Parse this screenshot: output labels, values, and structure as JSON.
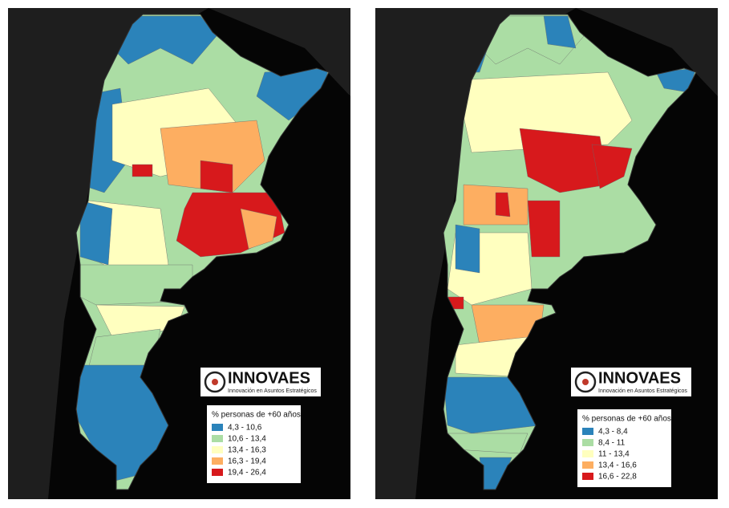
{
  "maps": [
    {
      "logo": {
        "name": "INNOVAES",
        "tagline": "Innovación en Asuntos Estratégicos"
      },
      "legend": {
        "title": "% personas de +60 años",
        "items": [
          {
            "label": "4,3 - 10,6",
            "color": "#2b83ba"
          },
          {
            "label": "10,6 - 13,4",
            "color": "#abdda4"
          },
          {
            "label": "13,4 - 16,3",
            "color": "#ffffbf"
          },
          {
            "label": "16,3 - 19,4",
            "color": "#fdae61"
          },
          {
            "label": "19,4 - 26,4",
            "color": "#d7191c"
          }
        ]
      }
    },
    {
      "logo": {
        "name": "INNOVAES",
        "tagline": "Innovación en Asuntos Estratégicos"
      },
      "legend": {
        "title": "% personas de +60 años",
        "items": [
          {
            "label": "4,3 - 8,4",
            "color": "#2b83ba"
          },
          {
            "label": "8,4 - 11",
            "color": "#abdda4"
          },
          {
            "label": "11 - 13,4",
            "color": "#ffffbf"
          },
          {
            "label": "13,4 - 16,6",
            "color": "#fdae61"
          },
          {
            "label": "16,6 - 22,8",
            "color": "#d7191c"
          }
        ]
      }
    }
  ]
}
